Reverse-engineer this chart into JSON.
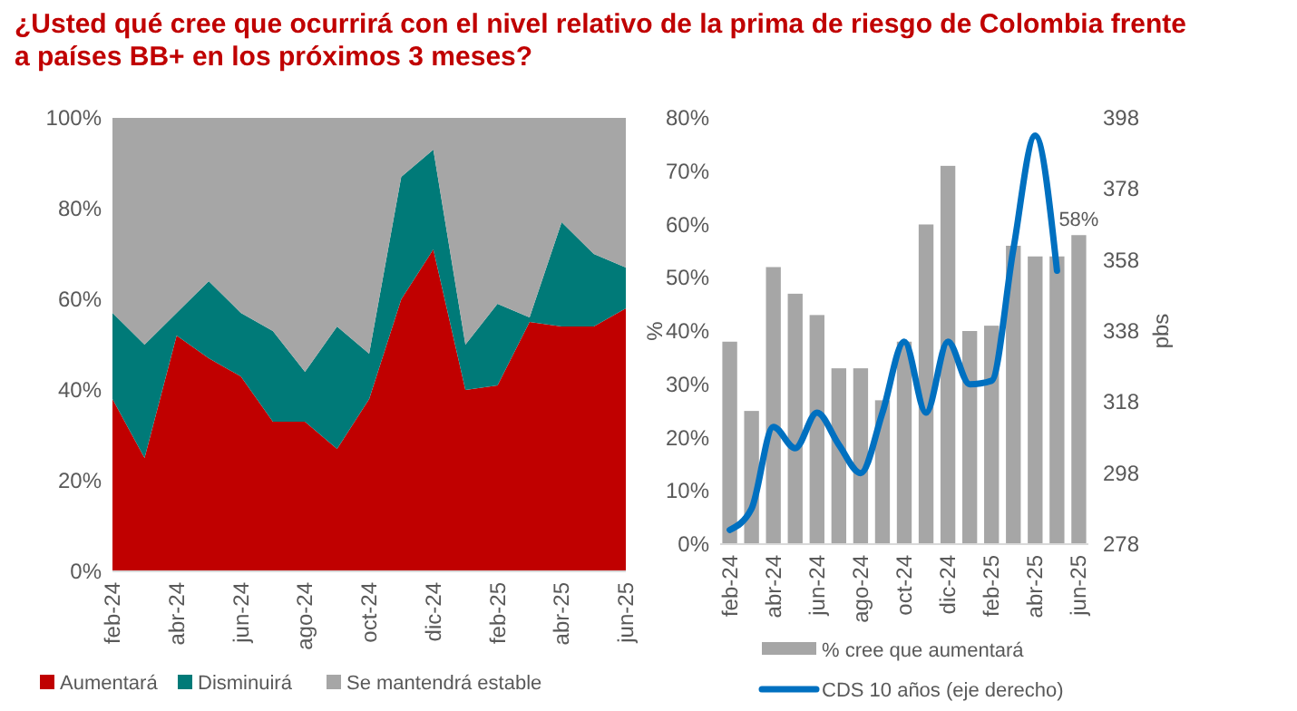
{
  "chart_data": [
    {
      "type": "area",
      "title": "¿Usted qué cree que ocurrirá con el nivel relativo de la prima de riesgo de Colombia frente a países BB+ en los próximos 3 meses?",
      "stacked": true,
      "legend": "bottom",
      "categories": [
        "feb-24",
        null,
        "abr-24",
        null,
        "jun-24",
        null,
        "ago-24",
        null,
        "oct-24",
        null,
        "dic-24",
        null,
        "feb-25",
        null,
        "abr-25",
        null,
        "jun-25"
      ],
      "ylim": [
        0,
        100
      ],
      "yticks": [
        {
          "value": 0,
          "label": "0%"
        },
        {
          "value": 20,
          "label": "20%"
        },
        {
          "value": 40,
          "label": "40%"
        },
        {
          "value": 60,
          "label": "60%"
        },
        {
          "value": 80,
          "label": "80%"
        },
        {
          "value": 100,
          "label": "100%"
        }
      ],
      "series": [
        {
          "name": "Aumentará",
          "color": "#c00000",
          "values": [
            38,
            25,
            52,
            47,
            43,
            33,
            33,
            27,
            38,
            60,
            71,
            40,
            41,
            55,
            54,
            54,
            58
          ]
        },
        {
          "name": "Disminuirá",
          "color": "#007a78",
          "values": [
            19,
            25,
            5,
            17,
            14,
            20,
            11,
            27,
            10,
            27,
            22,
            10,
            18,
            1,
            23,
            16,
            9
          ]
        },
        {
          "name": "Se mantendrá estable",
          "color": "#a6a6a6",
          "values": [
            43,
            50,
            43,
            36,
            43,
            47,
            56,
            46,
            52,
            13,
            7,
            50,
            41,
            44,
            23,
            30,
            33
          ]
        }
      ]
    },
    {
      "type": "bar",
      "legend": "bottom",
      "ylabel": "%",
      "y2label": "pbs",
      "categories": [
        "feb-24",
        null,
        "abr-24",
        null,
        "jun-24",
        null,
        "ago-24",
        null,
        "oct-24",
        null,
        "dic-24",
        null,
        "feb-25",
        null,
        "abr-25",
        null,
        "jun-25"
      ],
      "ylim": [
        0,
        80
      ],
      "yticks": [
        {
          "value": 0,
          "label": "0%"
        },
        {
          "value": 10,
          "label": "10%"
        },
        {
          "value": 20,
          "label": "20%"
        },
        {
          "value": 30,
          "label": "30%"
        },
        {
          "value": 40,
          "label": "40%"
        },
        {
          "value": 50,
          "label": "50%"
        },
        {
          "value": 60,
          "label": "60%"
        },
        {
          "value": 70,
          "label": "70%"
        },
        {
          "value": 80,
          "label": "80%"
        }
      ],
      "y2lim": [
        278,
        398
      ],
      "y2ticks": [
        278,
        298,
        318,
        338,
        358,
        378,
        398
      ],
      "series": [
        {
          "name": "% cree que aumentará",
          "type": "bar",
          "color": "#a6a6a6",
          "values": [
            38,
            25,
            52,
            47,
            43,
            33,
            33,
            27,
            38,
            60,
            71,
            40,
            41,
            56,
            54,
            54,
            58
          ],
          "value_labels": [
            null,
            null,
            null,
            null,
            null,
            null,
            null,
            null,
            null,
            null,
            null,
            null,
            null,
            null,
            null,
            null,
            "58%"
          ]
        },
        {
          "name": "CDS 10 años (eje derecho)",
          "type": "line",
          "axis": "y2",
          "color": "#0070c0",
          "values": [
            282,
            288,
            311,
            305,
            315,
            306,
            298,
            315,
            335,
            315,
            335,
            323,
            324,
            361,
            393,
            355,
            null
          ]
        }
      ]
    }
  ]
}
